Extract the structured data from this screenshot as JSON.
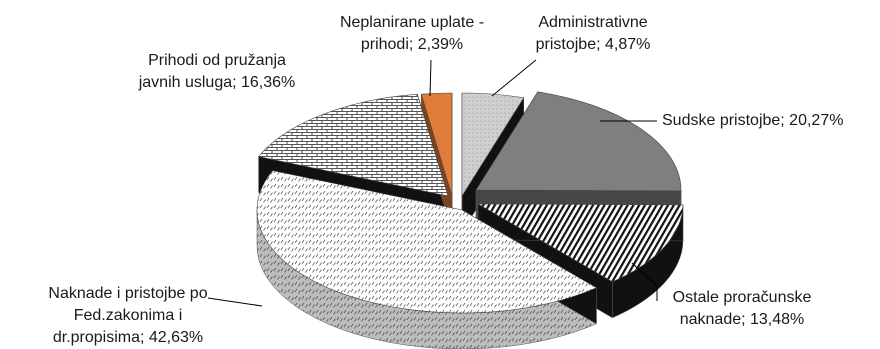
{
  "chart_data": {
    "type": "pie",
    "style": "3d-exploded",
    "legend": "none",
    "slices": [
      {
        "label_lines": [
          "Administrativne",
          "pristojbe; 4,87%"
        ],
        "value": 4.87,
        "fill": "dots-light",
        "color": "#c8c8c8"
      },
      {
        "label_lines": [
          "Sudske pristojbe; 20,27%"
        ],
        "value": 20.27,
        "fill": "solid",
        "color": "#7f7f7f"
      },
      {
        "label_lines": [
          "Ostale proračunske",
          "naknade; 13,48%"
        ],
        "value": 13.48,
        "fill": "diagonal-stripes",
        "color": "#1a1a1a"
      },
      {
        "label_lines": [
          "Naknade i pristojbe po",
          "Fed.zakonima i",
          "dr.propisima; 42,63%"
        ],
        "value": 42.63,
        "fill": "dashes",
        "color": "#555555"
      },
      {
        "label_lines": [
          "Prihodi od pružanja",
          "javnih usluga; 16,36%"
        ],
        "value": 16.36,
        "fill": "bricks",
        "color": "#333333"
      },
      {
        "label_lines": [
          "Neplanirane uplate -",
          "prihodi; 2,39%"
        ],
        "value": 2.39,
        "fill": "solid",
        "color": "#e07b39"
      }
    ]
  }
}
